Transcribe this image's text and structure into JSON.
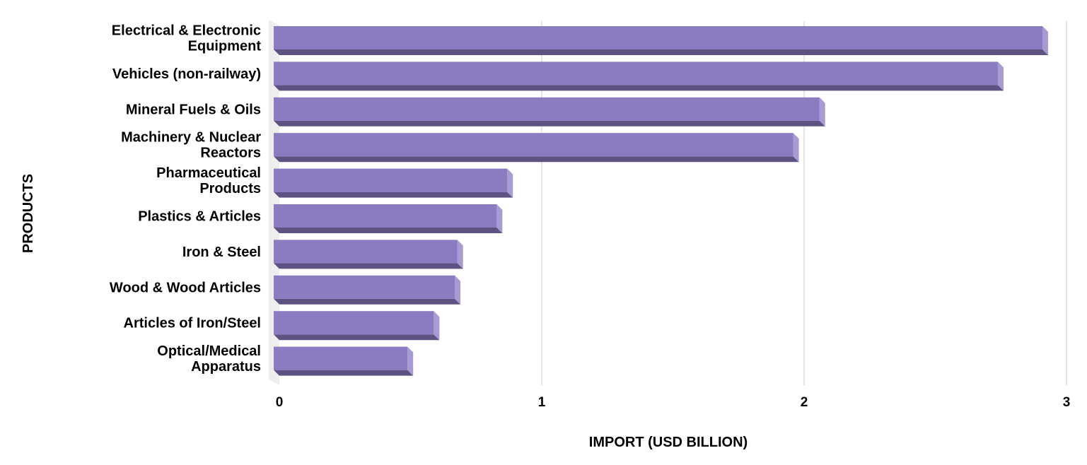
{
  "chart_data": {
    "type": "bar",
    "orientation": "horizontal",
    "style": "3d",
    "xlabel": "IMPORT (USD BILLION)",
    "ylabel": "PRODUCTS",
    "xlim": [
      0,
      3
    ],
    "xticks": [
      "0",
      "1",
      "2",
      "3"
    ],
    "grid": true,
    "categories": [
      [
        "Electrical & Electronic",
        "Equipment"
      ],
      [
        "Vehicles (non-railway)"
      ],
      [
        "Mineral Fuels & Oils"
      ],
      [
        "Machinery & Nuclear",
        "Reactors"
      ],
      [
        "Pharmaceutical",
        "Products"
      ],
      [
        "Plastics & Articles"
      ],
      [
        "Iron & Steel"
      ],
      [
        "Wood & Wood Articles"
      ],
      [
        "Articles of Iron/Steel"
      ],
      [
        "Optical/Medical",
        "Apparatus"
      ]
    ],
    "values": [
      2.93,
      2.76,
      2.08,
      1.98,
      0.89,
      0.85,
      0.7,
      0.69,
      0.61,
      0.51
    ],
    "colors": {
      "front": "#8b7bc0",
      "bottom": "#5e5282",
      "side": "#a89bd4",
      "wall": "#eeeeee",
      "grid": "#dddddd"
    }
  }
}
